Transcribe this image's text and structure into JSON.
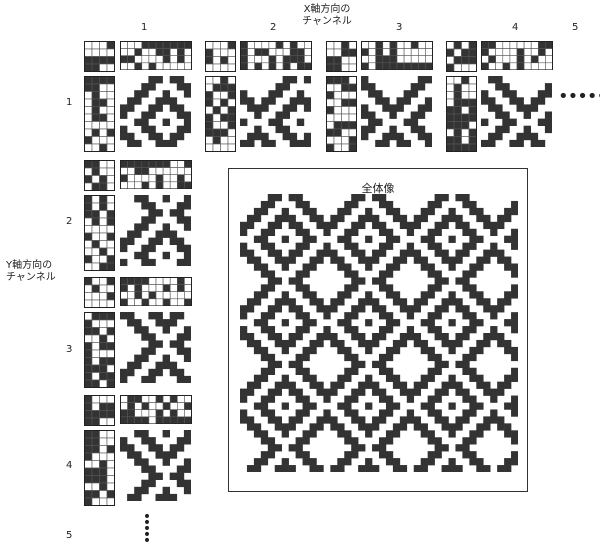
{
  "diagram": {
    "x_axis_title_line1": "X軸方向の",
    "x_axis_title_line2": "チャンネル",
    "y_axis_title_line1": "Y軸方向の",
    "y_axis_title_line2": "チャンネル",
    "x_channels": [
      "1",
      "2",
      "3",
      "4",
      "5"
    ],
    "y_channels": [
      "1",
      "2",
      "3",
      "4",
      "5"
    ],
    "overall_title": "全体像",
    "continuation_dots_h": "•••••",
    "continuation_dots_v": "•\n•\n•\n•\n•",
    "colors": {
      "ink": "#333333",
      "grid_line": "#555555",
      "background": "#ffffff"
    }
  }
}
